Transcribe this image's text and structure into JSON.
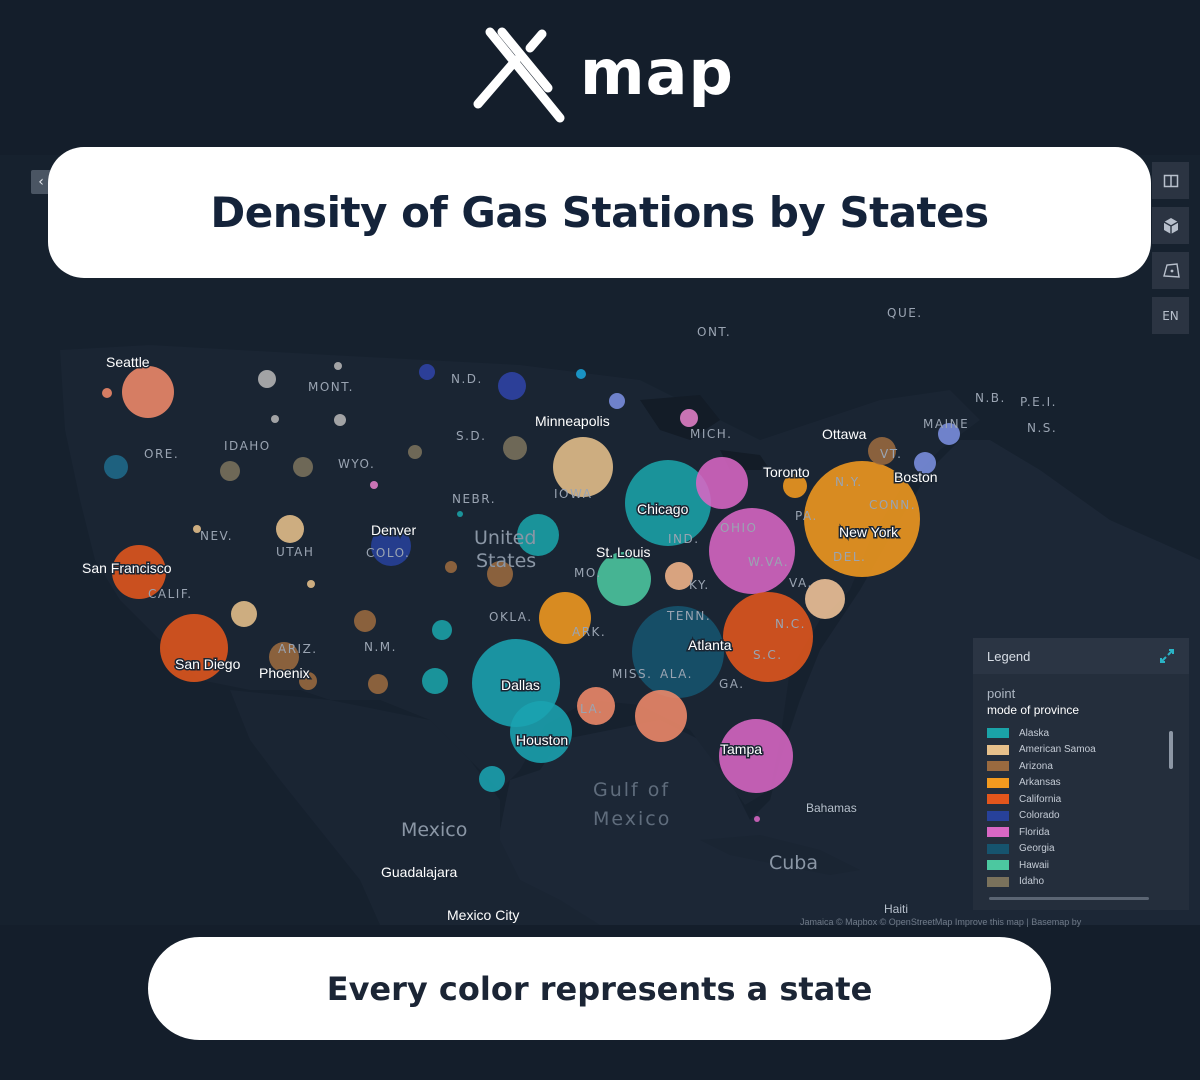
{
  "brand": {
    "name": "map",
    "logo_icon": "x-logo-icon"
  },
  "title": "Density of Gas Stations by States",
  "subtitle": "Every color represents a state",
  "toolbar": {
    "items": [
      {
        "icon": "split-panel-icon",
        "label": ""
      },
      {
        "icon": "3d-cube-icon",
        "label": ""
      },
      {
        "icon": "polygon-draw-icon",
        "label": ""
      },
      {
        "icon": "language",
        "label": "EN"
      }
    ]
  },
  "legend": {
    "title": "Legend",
    "layer": "point",
    "field": "mode of province",
    "items": [
      {
        "label": "Alaska",
        "color": "#1aa3a8"
      },
      {
        "label": "American Samoa",
        "color": "#e6c08b"
      },
      {
        "label": "Arizona",
        "color": "#9a6a3f"
      },
      {
        "label": "Arkansas",
        "color": "#f39a1f"
      },
      {
        "label": "California",
        "color": "#e3561c"
      },
      {
        "label": "Colorado",
        "color": "#27419a"
      },
      {
        "label": "Florida",
        "color": "#d867c4"
      },
      {
        "label": "Georgia",
        "color": "#16546e"
      },
      {
        "label": "Hawaii",
        "color": "#4cc8a0"
      },
      {
        "label": "Idaho",
        "color": "#7a725c"
      }
    ]
  },
  "attribution": "Jamaica © Mapbox © OpenStreetMap Improve this map | Basemap by",
  "map_labels": {
    "cities": [
      "Seattle",
      "San Francisco",
      "San Diego",
      "Phoenix",
      "Denver",
      "Minneapolis",
      "Chicago",
      "St. Louis",
      "Dallas",
      "Houston",
      "Atlanta",
      "Tampa",
      "New York",
      "Toronto",
      "Ottawa",
      "Boston",
      "Guadalajara",
      "Mexico City",
      "Bahamas",
      "Haiti"
    ],
    "states": [
      "MONT.",
      "IDAHO",
      "ORE.",
      "WYO.",
      "NEV.",
      "UTAH",
      "COLO.",
      "CALIF.",
      "ARIZ.",
      "N.M.",
      "N.D.",
      "S.D.",
      "NEBR.",
      "IOWA",
      "MO.",
      "OKLA.",
      "ARK.",
      "LA.",
      "MISS.",
      "ALA.",
      "GA.",
      "TENN.",
      "KY.",
      "IND.",
      "OHIO",
      "W.VA.",
      "VA.",
      "N.C.",
      "S.C.",
      "PA.",
      "N.Y.",
      "CONN.",
      "DEL.",
      "VT.",
      "MAINE",
      "MICH.",
      "ONT.",
      "QUE.",
      "N.B.",
      "P.E.I.",
      "N.S."
    ],
    "countries": [
      "United",
      "States",
      "Mexico",
      "Cuba"
    ],
    "water": [
      "Gulf of",
      "Mexico"
    ]
  }
}
